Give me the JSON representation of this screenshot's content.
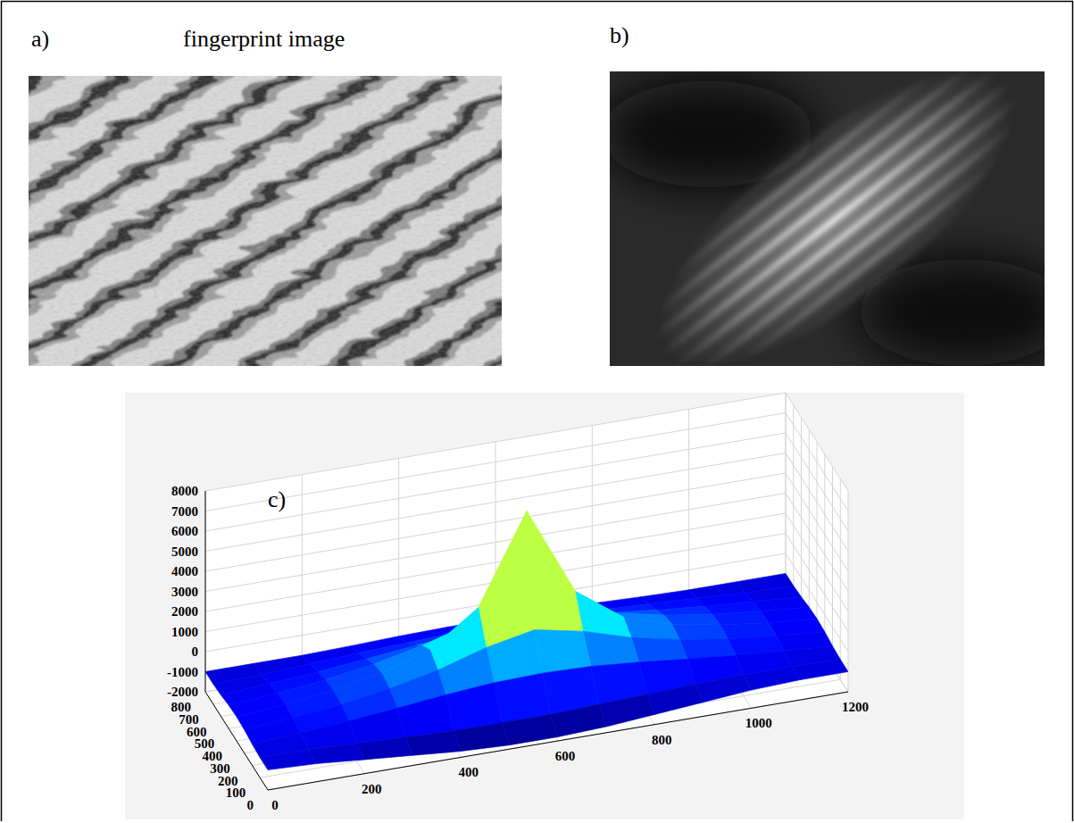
{
  "chart_data": [
    {
      "type": "image",
      "panel_label": "a)",
      "title": "fingerprint image"
    },
    {
      "type": "image",
      "panel_label": "b)"
    },
    {
      "type": "surface",
      "panel_label": "c)",
      "x": [
        0,
        100,
        200,
        300,
        400,
        500,
        600,
        700,
        800,
        900,
        1000,
        1100,
        1200
      ],
      "y": [
        0,
        100,
        200,
        300,
        400,
        500,
        600,
        700,
        800
      ],
      "z": [
        [
          -1000,
          -1100,
          -1300,
          -1500,
          -1700,
          -1800,
          -1800,
          -1700,
          -1500,
          -1300,
          -1100,
          -1000,
          -1000
        ],
        [
          -1000,
          -1000,
          -1100,
          -1200,
          -1300,
          -1300,
          -1300,
          -1200,
          -1100,
          -1000,
          -950,
          -950,
          -1000
        ],
        [
          -940,
          -770,
          -600,
          -370,
          -120,
          80,
          150,
          80,
          -120,
          -370,
          -600,
          -770,
          -940
        ],
        [
          -840,
          -640,
          -380,
          -10,
          500,
          1220,
          1700,
          1220,
          500,
          -10,
          -380,
          -640,
          -840
        ],
        [
          -800,
          -600,
          -300,
          150,
          900,
          2600,
          7000,
          2600,
          900,
          150,
          -300,
          -600,
          -800
        ],
        [
          -840,
          -640,
          -380,
          -10,
          500,
          1220,
          1700,
          1220,
          500,
          -10,
          -380,
          -640,
          -840
        ],
        [
          -940,
          -770,
          -600,
          -370,
          -120,
          80,
          150,
          80,
          -120,
          -370,
          -600,
          -770,
          -940
        ],
        [
          -1000,
          -950,
          -800,
          -680,
          -580,
          -480,
          -450,
          -480,
          -580,
          -680,
          -800,
          -950,
          -1000
        ],
        [
          -1000,
          -1000,
          -1000,
          -940,
          -860,
          -820,
          -800,
          -820,
          -860,
          -940,
          -1000,
          -1000,
          -1000
        ]
      ],
      "xlim": [
        0,
        1200
      ],
      "xticks": [
        0,
        200,
        400,
        600,
        800,
        1000,
        1200
      ],
      "ylim": [
        0,
        800
      ],
      "yticks": [
        0,
        100,
        200,
        300,
        400,
        500,
        600,
        700,
        800
      ],
      "zlim": [
        -2000,
        8000
      ],
      "zticks": [
        -2000,
        -1000,
        0,
        1000,
        2000,
        3000,
        4000,
        5000,
        6000,
        7000,
        8000
      ],
      "grid": true
    }
  ]
}
